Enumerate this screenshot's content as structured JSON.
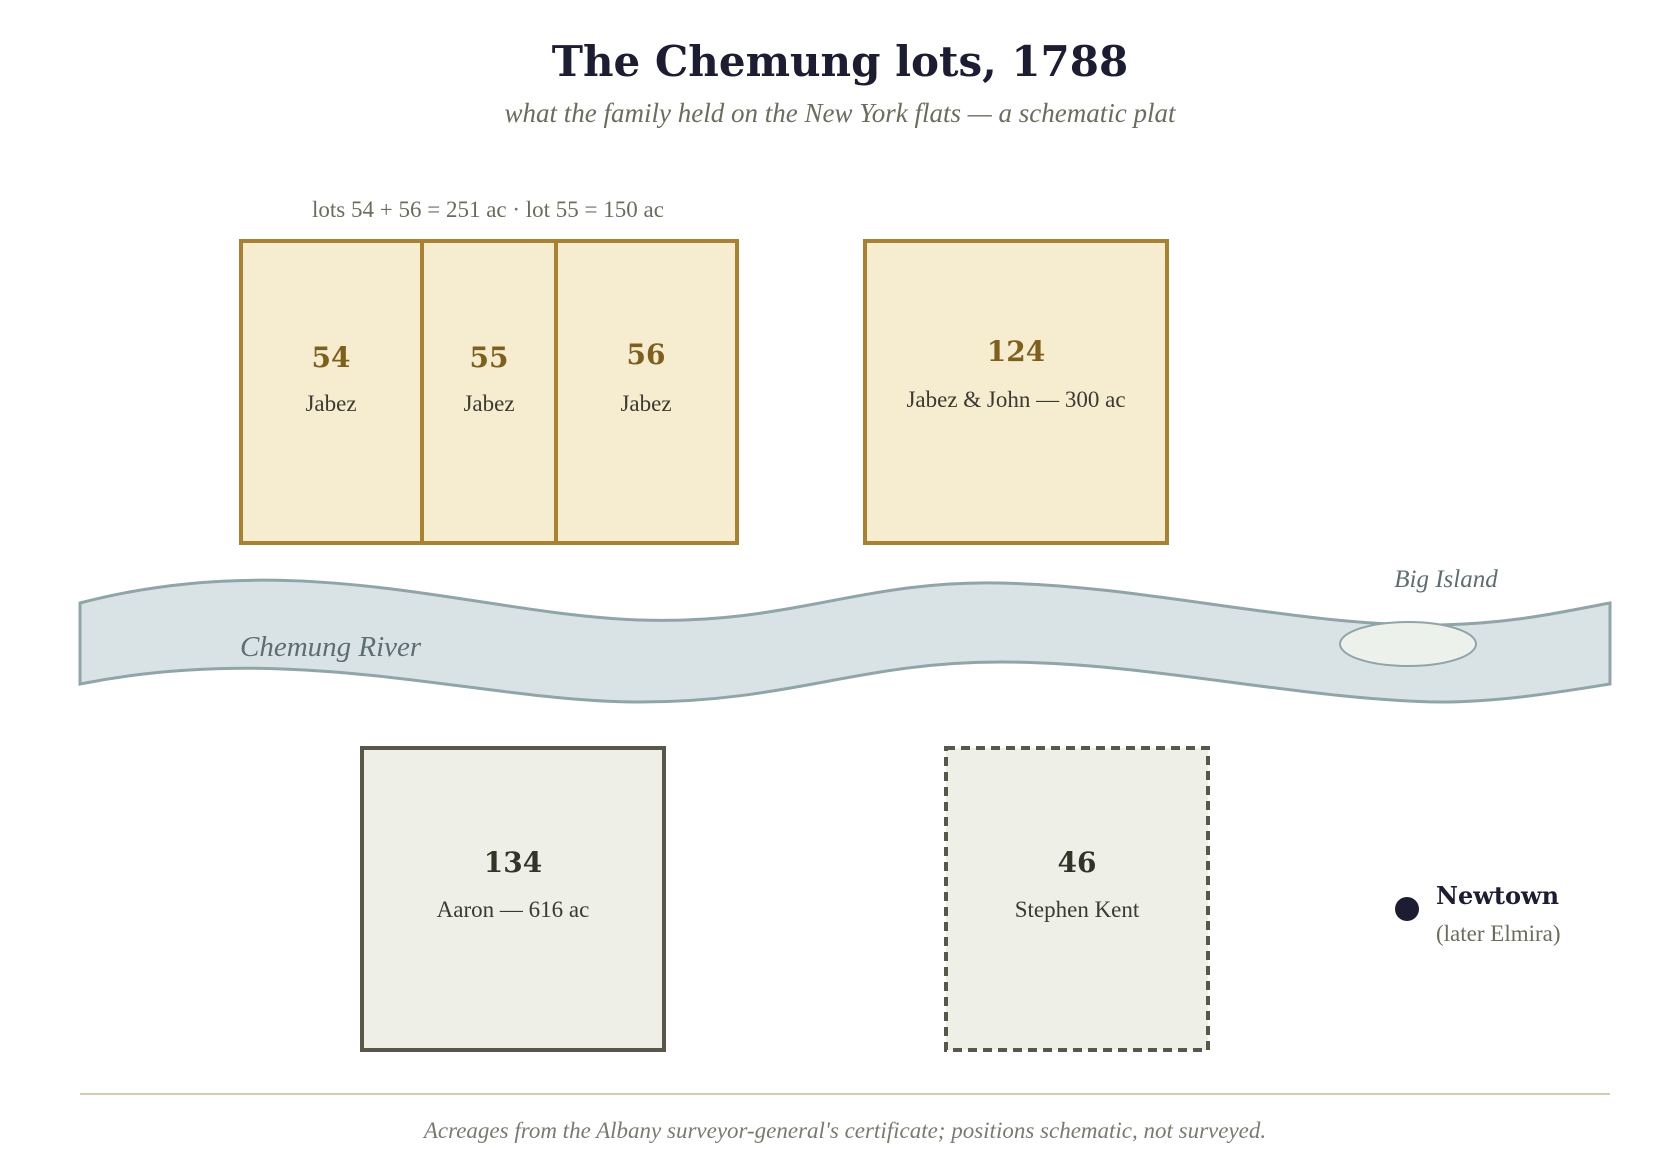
{
  "title": "The Chemung lots, 1788",
  "subtitle": "what the family held on the New York flats — a schematic plat",
  "acreage_note": "lots 54 + 56 = 251 ac · lot 55 = 150 ac",
  "lots_north": [
    {
      "number": "54",
      "owner": "Jabez"
    },
    {
      "number": "55",
      "owner": "Jabez"
    },
    {
      "number": "56",
      "owner": "Jabez"
    },
    {
      "number": "124",
      "owner": "Jabez & John — 300 ac"
    }
  ],
  "lots_south": [
    {
      "number": "134",
      "owner": "Aaron — 616 ac"
    },
    {
      "number": "46",
      "owner": "Stephen Kent"
    }
  ],
  "river": {
    "label": "Chemung River"
  },
  "island": {
    "label": "Big Island"
  },
  "town": {
    "name": "Newtown",
    "note": "(later Elmira)"
  },
  "footer": "Acreages from the Albany surveyor-general's certificate; positions schematic, not surveyed.",
  "colors": {
    "family_fill": "#f6ecd0",
    "family_stroke": "#a8822f",
    "other_fill": "#eeefe6",
    "other_stroke": "#58574a",
    "river_fill": "#d9e3e5",
    "river_stroke": "#8fa5a8",
    "island_fill": "#edf1ec",
    "town_dot": "#1c1c33",
    "rule": "#d8c9b4"
  }
}
